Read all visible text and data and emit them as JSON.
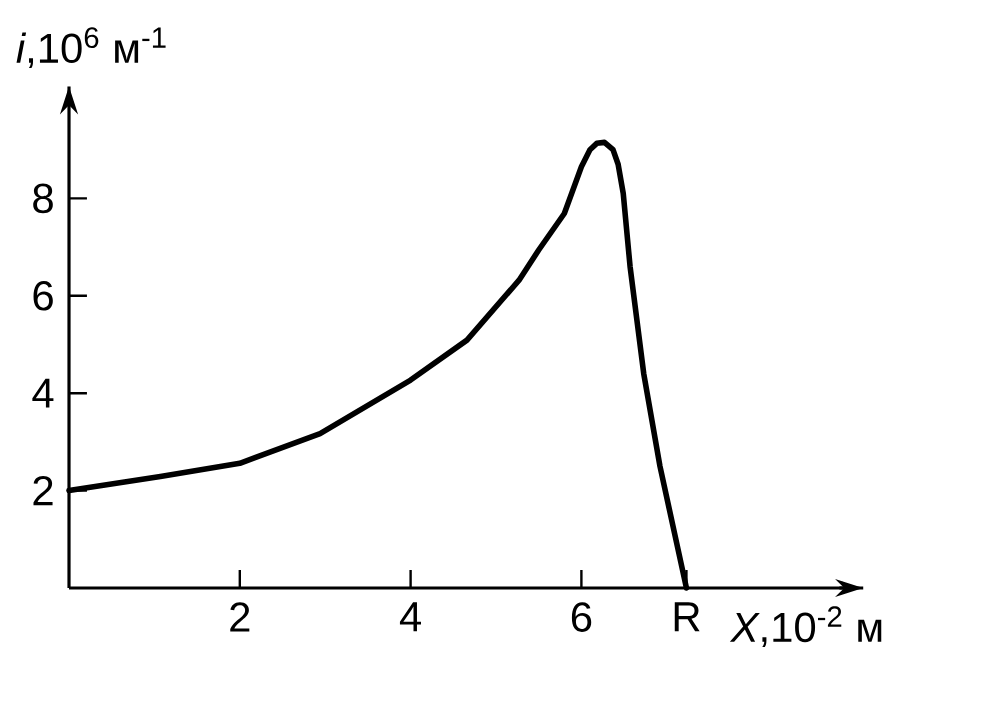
{
  "chart_data": {
    "type": "line",
    "xlabel": "*X*,10$^{-2}$ м",
    "ylabel": "*i*,10$^{6}$ м$^{-1}$",
    "xlim": [
      0,
      9.3
    ],
    "ylim": [
      0,
      10.3
    ],
    "xticks": [
      2,
      4,
      6,
      {
        "value": 7.23,
        "label": "R"
      }
    ],
    "yticks": [
      2,
      4,
      6,
      8
    ],
    "x": [
      0,
      1.07,
      2,
      2.94,
      4,
      4.66,
      5.27,
      5.5,
      5.8,
      6.0,
      6.1,
      6.18,
      6.27,
      6.37,
      6.43,
      6.49,
      6.57,
      6.73,
      6.92,
      7.23
    ],
    "series": [
      {
        "color": "#000000",
        "values": [
          2.0,
          2.29,
          2.56,
          3.17,
          4.27,
          5.09,
          6.32,
          6.94,
          7.69,
          8.65,
          9.0,
          9.13,
          9.15,
          9.0,
          8.7,
          8.1,
          6.6,
          4.4,
          2.5,
          0
        ]
      }
    ]
  }
}
